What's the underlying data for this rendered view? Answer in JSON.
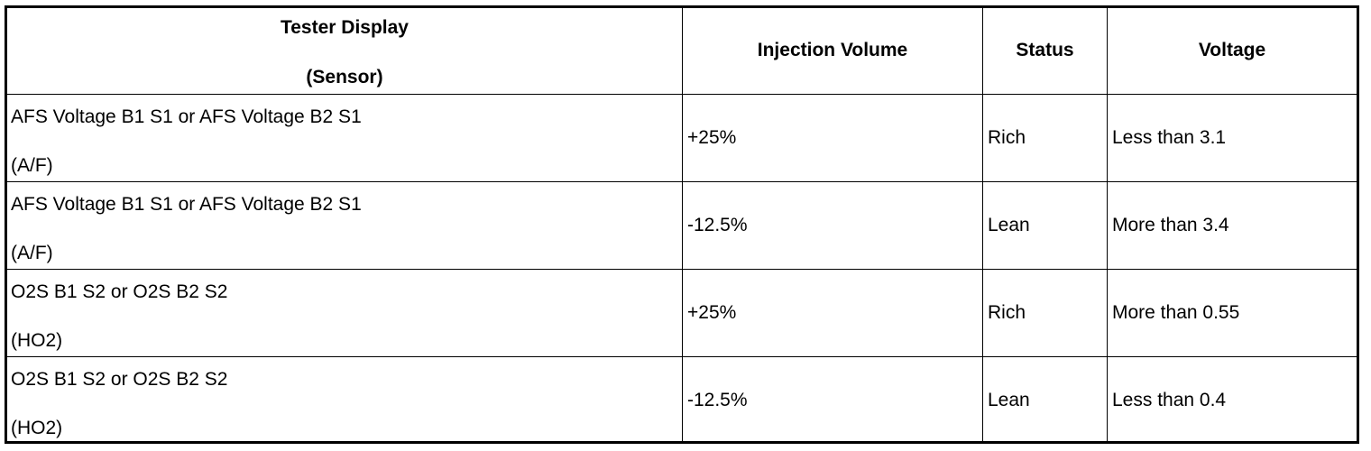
{
  "table": {
    "headers": {
      "sensor_line1": "Tester Display",
      "sensor_line2": "(Sensor)",
      "injection_volume": "Injection Volume",
      "status": "Status",
      "voltage": "Voltage"
    },
    "rows": [
      {
        "sensor": "AFS Voltage B1 S1 or AFS Voltage B2 S1",
        "code": "(A/F)",
        "injection_volume": "+25%",
        "status": "Rich",
        "voltage": "Less than 3.1"
      },
      {
        "sensor": "AFS Voltage B1 S1 or AFS Voltage B2 S1",
        "code": "(A/F)",
        "injection_volume": "-12.5%",
        "status": "Lean",
        "voltage": "More than 3.4"
      },
      {
        "sensor": "O2S B1 S2 or O2S B2 S2",
        "code": "(HO2)",
        "injection_volume": "+25%",
        "status": "Rich",
        "voltage": "More than 0.55"
      },
      {
        "sensor": "O2S B1 S2 or O2S B2 S2",
        "code": "(HO2)",
        "injection_volume": "-12.5%",
        "status": "Lean",
        "voltage": "Less than 0.4"
      }
    ]
  }
}
